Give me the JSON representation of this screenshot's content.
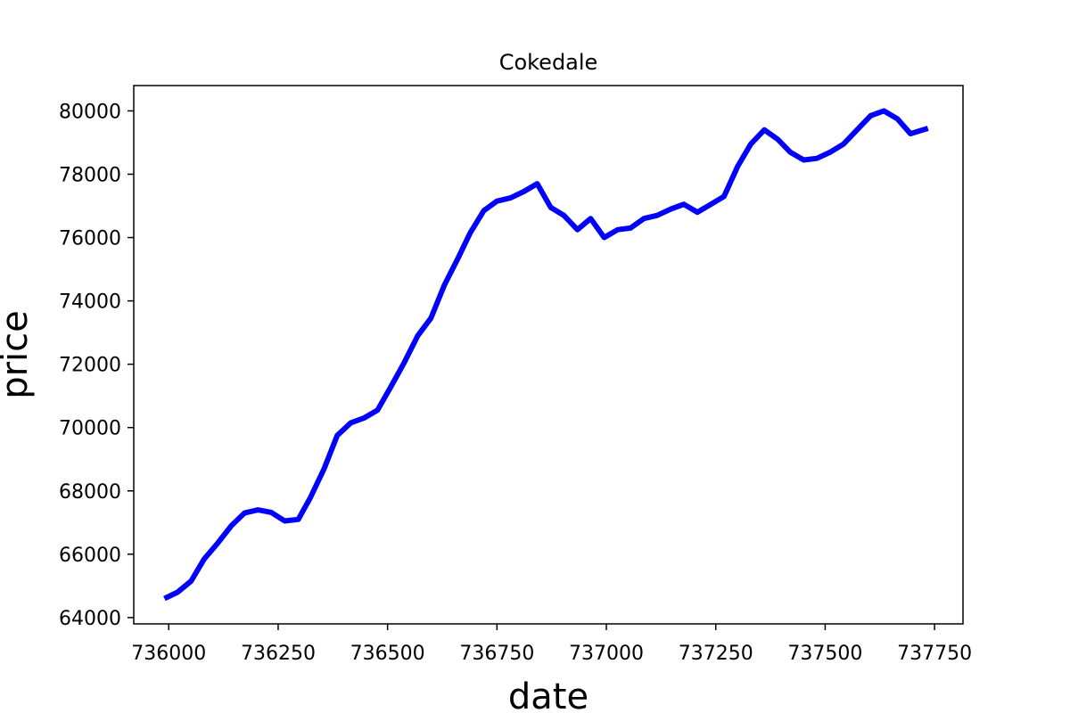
{
  "chart_data": {
    "type": "line",
    "title": "Cokedale",
    "xlabel": "date",
    "ylabel": "price",
    "xlim": [
      735920,
      737815
    ],
    "ylim": [
      63800,
      80800
    ],
    "xticks": [
      736000,
      736250,
      736500,
      736750,
      737000,
      737250,
      737500,
      737750
    ],
    "xtick_labels": [
      "736000",
      "736250",
      "736500",
      "736750",
      "737000",
      "737250",
      "737500",
      "737750"
    ],
    "yticks": [
      64000,
      66000,
      68000,
      70000,
      72000,
      74000,
      76000,
      78000,
      80000
    ],
    "ytick_labels": [
      "64000",
      "66000",
      "68000",
      "70000",
      "72000",
      "74000",
      "76000",
      "78000",
      "80000"
    ],
    "grid": false,
    "series": [
      {
        "name": "price",
        "color": "#0000ff",
        "x": [
          735990,
          736020,
          736051,
          736081,
          736112,
          736143,
          736173,
          736204,
          736234,
          736265,
          736296,
          736324,
          736355,
          736385,
          736416,
          736446,
          736477,
          736508,
          736538,
          736569,
          736599,
          736630,
          736661,
          736689,
          736720,
          736750,
          736781,
          736811,
          736842,
          736873,
          736903,
          736934,
          736964,
          736995,
          737026,
          737055,
          737086,
          737116,
          737147,
          737177,
          737208,
          737239,
          737269,
          737300,
          737330,
          737361,
          737392,
          737420,
          737451,
          737481,
          737512,
          737542,
          737573,
          737604,
          737634,
          737665,
          737695,
          737735
        ],
        "values": [
          64600,
          64800,
          65150,
          65850,
          66350,
          66900,
          67300,
          67400,
          67320,
          67050,
          67100,
          67800,
          68700,
          69750,
          70150,
          70300,
          70550,
          71300,
          72050,
          72900,
          73450,
          74500,
          75350,
          76150,
          76850,
          77150,
          77250,
          77450,
          77700,
          76950,
          76700,
          76250,
          76600,
          76000,
          76250,
          76300,
          76600,
          76700,
          76900,
          77050,
          76800,
          77050,
          77300,
          78250,
          78950,
          79400,
          79100,
          78700,
          78450,
          78500,
          78700,
          78950,
          79400,
          79850,
          80000,
          79750,
          79280,
          79450
        ]
      }
    ]
  }
}
